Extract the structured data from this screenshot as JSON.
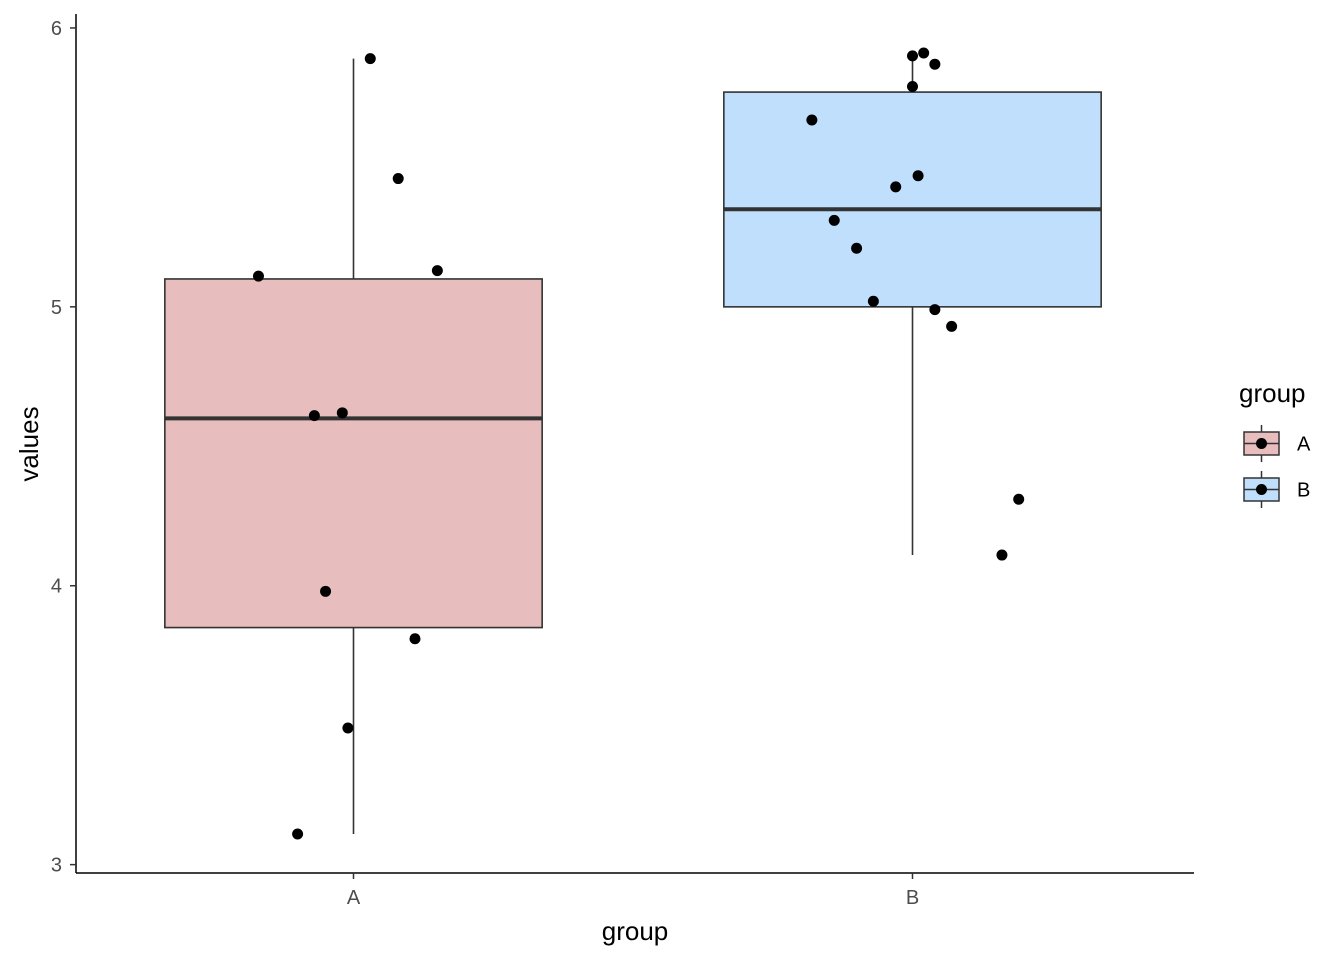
{
  "chart_data": {
    "type": "box",
    "title": "",
    "xlabel": "group",
    "ylabel": "values",
    "ylim": [
      2.97,
      6.05
    ],
    "y_ticks": [
      3,
      4,
      5,
      6
    ],
    "y_tick_labels": [
      "3",
      "4",
      "5",
      "6"
    ],
    "categories": [
      "A",
      "B"
    ],
    "grid": false,
    "legend": {
      "title": "group",
      "position": "right",
      "entries": [
        "A",
        "B"
      ]
    },
    "colors": {
      "A": "#e8bdbd",
      "B": "#bfdffd",
      "box_outline": "#333333",
      "points": "#000000"
    },
    "boxes": [
      {
        "group": "A",
        "whisker_low": 3.11,
        "q1": 3.85,
        "median": 4.6,
        "q3": 5.1,
        "whisker_high": 5.89
      },
      {
        "group": "B",
        "whisker_low": 4.11,
        "q1": 5.0,
        "median": 5.35,
        "q3": 5.77,
        "whisker_high": 5.91
      }
    ],
    "points": [
      {
        "group": "A",
        "jitter": 0.03,
        "y": 5.89
      },
      {
        "group": "A",
        "jitter": 0.08,
        "y": 5.46
      },
      {
        "group": "A",
        "jitter": 0.15,
        "y": 5.13
      },
      {
        "group": "A",
        "jitter": -0.17,
        "y": 5.11
      },
      {
        "group": "A",
        "jitter": -0.02,
        "y": 4.62
      },
      {
        "group": "A",
        "jitter": -0.07,
        "y": 4.61
      },
      {
        "group": "A",
        "jitter": -0.05,
        "y": 3.98
      },
      {
        "group": "A",
        "jitter": 0.11,
        "y": 3.81
      },
      {
        "group": "A",
        "jitter": -0.01,
        "y": 3.49
      },
      {
        "group": "A",
        "jitter": -0.1,
        "y": 3.11
      },
      {
        "group": "B",
        "jitter": 0.02,
        "y": 5.91
      },
      {
        "group": "B",
        "jitter": 0.0,
        "y": 5.9
      },
      {
        "group": "B",
        "jitter": 0.04,
        "y": 5.87
      },
      {
        "group": "B",
        "jitter": 0.0,
        "y": 5.79
      },
      {
        "group": "B",
        "jitter": -0.18,
        "y": 5.67
      },
      {
        "group": "B",
        "jitter": 0.01,
        "y": 5.47
      },
      {
        "group": "B",
        "jitter": -0.03,
        "y": 5.43
      },
      {
        "group": "B",
        "jitter": -0.14,
        "y": 5.31
      },
      {
        "group": "B",
        "jitter": -0.1,
        "y": 5.21
      },
      {
        "group": "B",
        "jitter": -0.07,
        "y": 5.02
      },
      {
        "group": "B",
        "jitter": 0.04,
        "y": 4.99
      },
      {
        "group": "B",
        "jitter": 0.07,
        "y": 4.93
      },
      {
        "group": "B",
        "jitter": 0.19,
        "y": 4.31
      },
      {
        "group": "B",
        "jitter": 0.16,
        "y": 4.11
      }
    ]
  }
}
